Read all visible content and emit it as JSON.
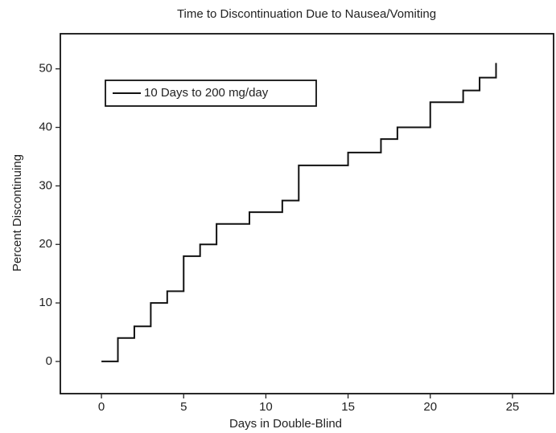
{
  "chart_data": {
    "type": "step",
    "title": "Time to Discontinuation Due to Nausea/Vomiting",
    "x_label": "Days in Double-Blind",
    "y_label": "Percent Discontinuing",
    "series": [
      {
        "name": "10 Days to 200 mg/day",
        "color": "#111111",
        "x": [
          0,
          1,
          2,
          3,
          4,
          5,
          6,
          7,
          9,
          11,
          12,
          15,
          17,
          18,
          20,
          22,
          23,
          24
        ],
        "values": [
          0,
          4,
          6,
          10,
          12,
          18,
          20,
          23.5,
          25.5,
          27.5,
          33.5,
          35.7,
          38,
          40,
          44.3,
          46.3,
          48.5,
          51
        ]
      }
    ],
    "xlim": [
      -2.5,
      27.5
    ],
    "xticks": [
      0,
      5,
      10,
      15,
      20,
      25
    ],
    "ylim": [
      -5.5,
      56
    ],
    "yticks": [
      0,
      10,
      20,
      30,
      40,
      50
    ],
    "legend": "upper left"
  }
}
